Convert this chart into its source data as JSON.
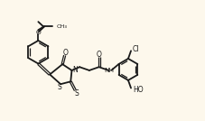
{
  "bg_color": "#fdf8ec",
  "bond_color": "#1a1a1a",
  "lw": 1.3,
  "lw2": 0.9,
  "fs": 6.0,
  "xlim": [
    0,
    10.5
  ],
  "ylim": [
    0.5,
    7.0
  ]
}
